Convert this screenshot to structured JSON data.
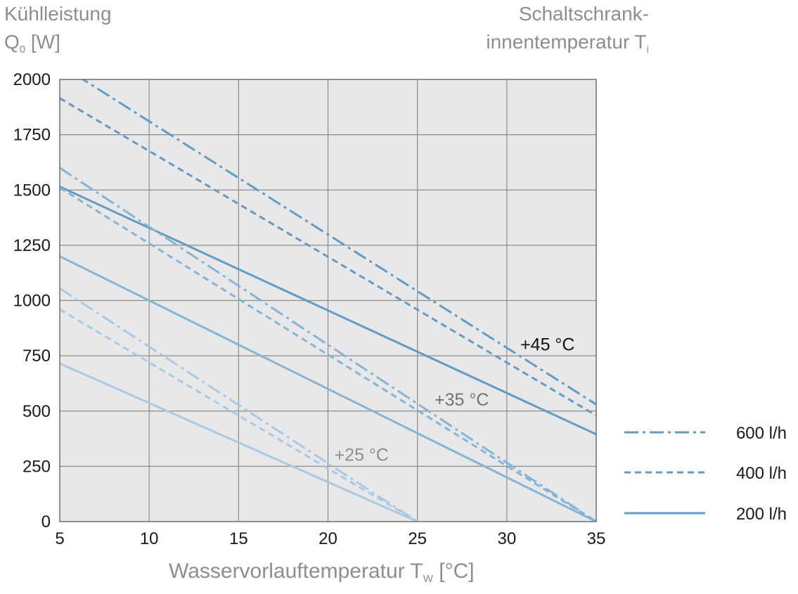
{
  "chart_data": {
    "type": "line",
    "ylabel_line1": "Kühlleistung",
    "ylabel_line2": "Q",
    "ylabel_sub": "0",
    "ylabel_unit": " [W]",
    "rlabel_line1": "Schaltschrank-",
    "rlabel_line2": "innentemperatur T",
    "rlabel_sub": "i",
    "xlabel_main": "Wasservorlauftemperatur T",
    "xlabel_sub": "W",
    "xlabel_unit": " [°C]",
    "xlim": [
      5,
      35
    ],
    "ylim": [
      0,
      2000
    ],
    "x_ticks": [
      "5",
      "10",
      "15",
      "20",
      "25",
      "30",
      "35"
    ],
    "y_ticks": [
      "0",
      "250",
      "500",
      "750",
      "1000",
      "1250",
      "1500",
      "1750",
      "2000"
    ],
    "grid": true,
    "legend_position": "right",
    "legend": [
      {
        "label": "600 l/h",
        "style": "dashdot"
      },
      {
        "label": "400 l/h",
        "style": "dashed"
      },
      {
        "label": "200 l/h",
        "style": "solid"
      }
    ],
    "annotations": [
      {
        "text": "+45 °C",
        "x": 33.8,
        "y": 800,
        "color": "#111111"
      },
      {
        "text": "+35 °C",
        "x": 29.0,
        "y": 550,
        "color": "#6f7377"
      },
      {
        "text": "+25 °C",
        "x": 23.4,
        "y": 300,
        "color": "#8a8f94"
      }
    ],
    "series": [
      {
        "group": "+45 °C",
        "flow": "600 l/h",
        "style": "dashdot",
        "color": "#5f9dc7",
        "x": [
          5,
          6.3,
          35
        ],
        "y": [
          2110,
          2000,
          530
        ]
      },
      {
        "group": "+45 °C",
        "flow": "400 l/h",
        "style": "dashed",
        "color": "#5f9dc7",
        "x": [
          5,
          35
        ],
        "y": [
          1915,
          480
        ]
      },
      {
        "group": "+45 °C",
        "flow": "200 l/h",
        "style": "solid",
        "color": "#5f9dc7",
        "x": [
          5,
          35
        ],
        "y": [
          1515,
          395
        ]
      },
      {
        "group": "+35 °C",
        "flow": "600 l/h",
        "style": "dashdot",
        "color": "#85b5d6",
        "x": [
          5,
          35
        ],
        "y": [
          1600,
          0
        ]
      },
      {
        "group": "+35 °C",
        "flow": "400 l/h",
        "style": "dashed",
        "color": "#85b5d6",
        "x": [
          5,
          35
        ],
        "y": [
          1510,
          0
        ]
      },
      {
        "group": "+35 °C",
        "flow": "200 l/h",
        "style": "solid",
        "color": "#85b5d6",
        "x": [
          5,
          35
        ],
        "y": [
          1200,
          0
        ]
      },
      {
        "group": "+25 °C",
        "flow": "600 l/h",
        "style": "dashdot",
        "color": "#a9cae3",
        "x": [
          5,
          25
        ],
        "y": [
          1055,
          0
        ]
      },
      {
        "group": "+25 °C",
        "flow": "400 l/h",
        "style": "dashed",
        "color": "#a9cae3",
        "x": [
          5,
          25
        ],
        "y": [
          960,
          0
        ]
      },
      {
        "group": "+25 °C",
        "flow": "200 l/h",
        "style": "solid",
        "color": "#a9cae3",
        "x": [
          5,
          25
        ],
        "y": [
          715,
          0
        ]
      }
    ],
    "colors": {
      "plot_bg": "#e8e8e9",
      "grid": "#8c8c8c",
      "frame": "#6e6e6e",
      "legend_line": "#5f9dc7"
    }
  }
}
